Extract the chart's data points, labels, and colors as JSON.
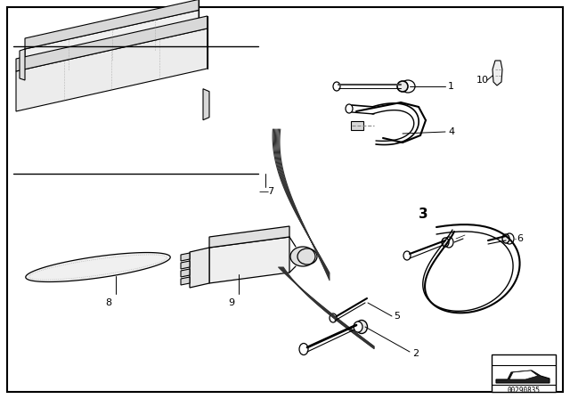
{
  "background_color": "#ffffff",
  "border_color": "#000000",
  "line_color": "#000000",
  "fig_width": 6.4,
  "fig_height": 4.48,
  "dpi": 100,
  "part_number": "00290835"
}
